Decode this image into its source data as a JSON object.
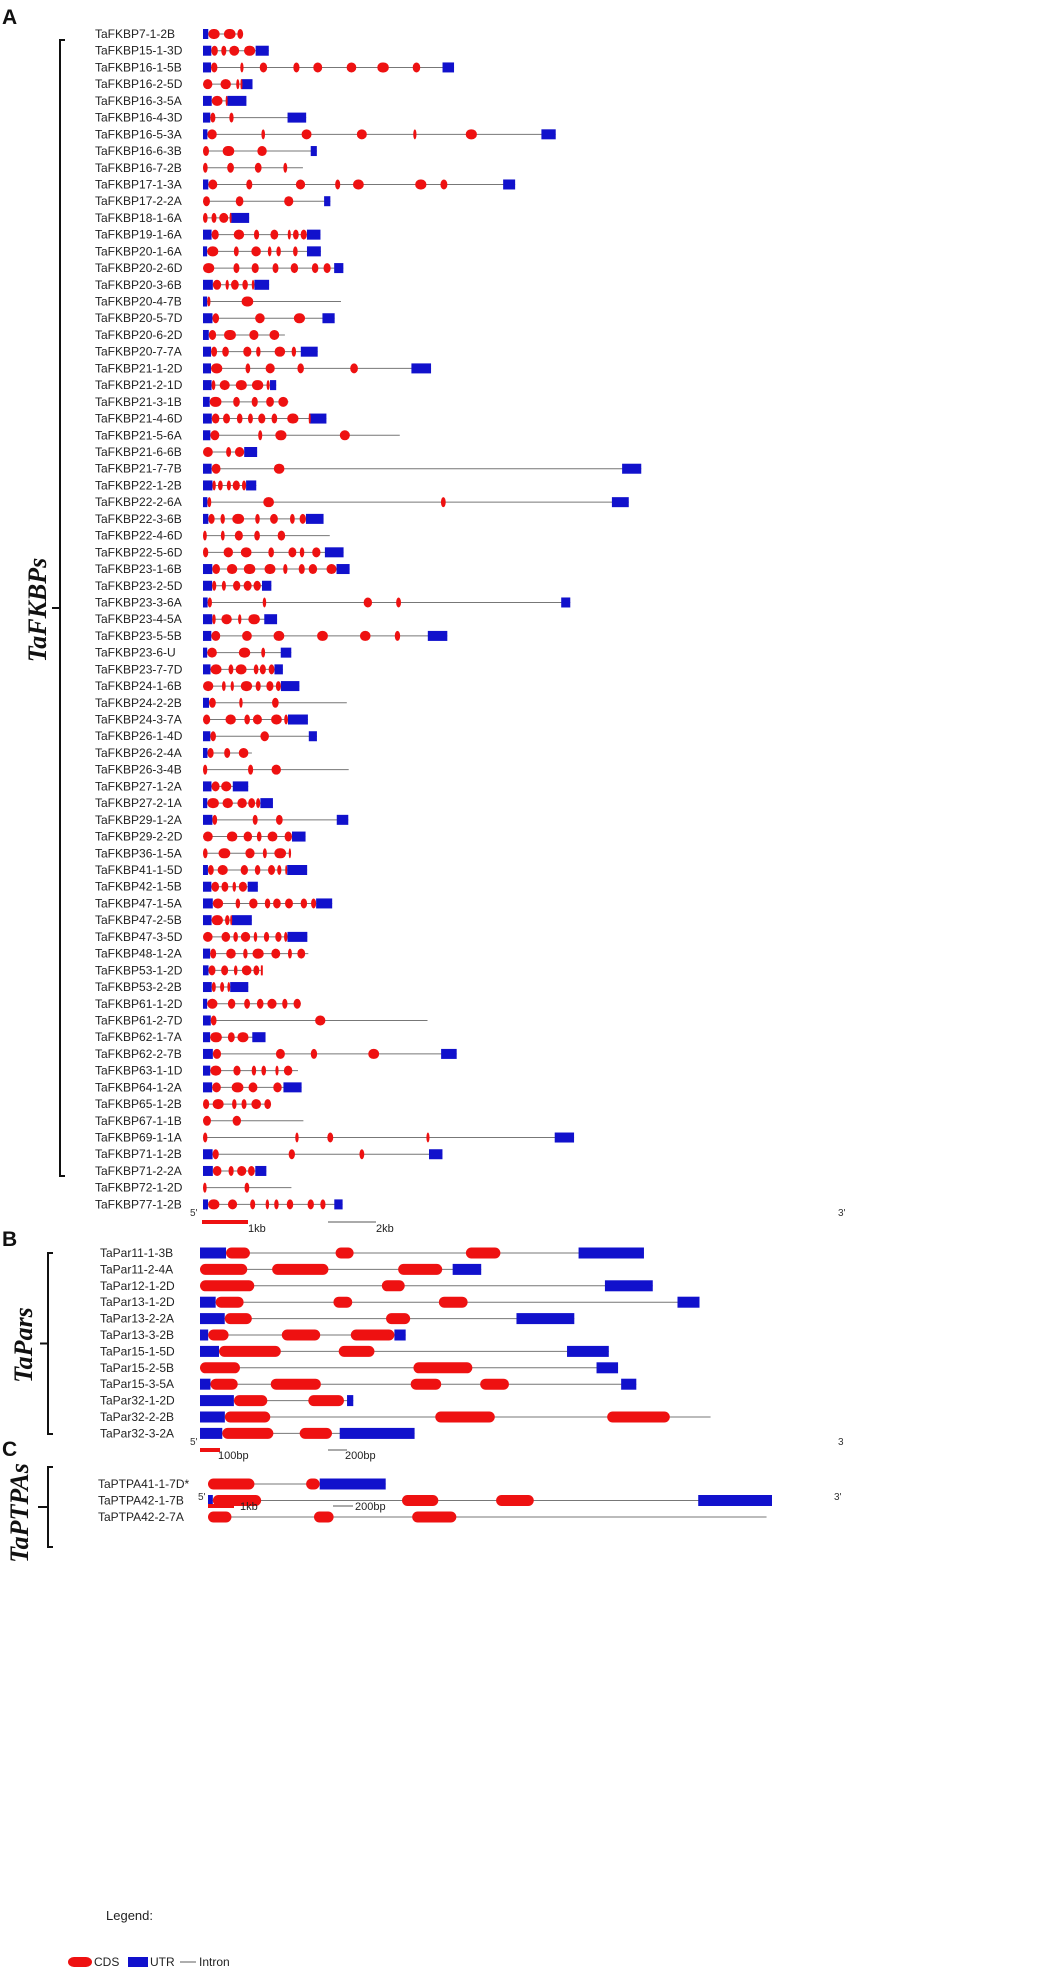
{
  "figure": {
    "colors": {
      "cds": "#ee1111",
      "utr": "#1111cc",
      "intron": "#777777",
      "text": "#222222"
    }
  },
  "legend": {
    "title": "Legend:",
    "cds": "CDS",
    "utr": "UTR",
    "intron": "Intron"
  },
  "panels": [
    {
      "letter": "A",
      "group": "TaFKBPs",
      "five_prime": "5'",
      "three_prime": "3'",
      "scales": [
        {
          "label": "1kb",
          "style": "cds"
        },
        {
          "label": "2kb",
          "style": "intron"
        }
      ],
      "genes": [
        "TaFKBP7-1-2B",
        "TaFKBP15-1-3D",
        "TaFKBP16-1-5B",
        "TaFKBP16-2-5D",
        "TaFKBP16-3-5A",
        "TaFKBP16-4-3D",
        "TaFKBP16-5-3A",
        "TaFKBP16-6-3B",
        "TaFKBP16-7-2B",
        "TaFKBP17-1-3A",
        "TaFKBP17-2-2A",
        "TaFKBP18-1-6A",
        "TaFKBP19-1-6A",
        "TaFKBP20-1-6A",
        "TaFKBP20-2-6D",
        "TaFKBP20-3-6B",
        "TaFKBP20-4-7B",
        "TaFKBP20-5-7D",
        "TaFKBP20-6-2D",
        "TaFKBP20-7-7A",
        "TaFKBP21-1-2D",
        "TaFKBP21-2-1D",
        "TaFKBP21-3-1B",
        "TaFKBP21-4-6D",
        "TaFKBP21-5-6A",
        "TaFKBP21-6-6B",
        "TaFKBP21-7-7B",
        "TaFKBP22-1-2B",
        "TaFKBP22-2-6A",
        "TaFKBP22-3-6B",
        "TaFKBP22-4-6D",
        "TaFKBP22-5-6D",
        "TaFKBP23-1-6B",
        "TaFKBP23-2-5D",
        "TaFKBP23-3-6A",
        "TaFKBP23-4-5A",
        "TaFKBP23-5-5B",
        "TaFKBP23-6-U",
        "TaFKBP23-7-7D",
        "TaFKBP24-1-6B",
        "TaFKBP24-2-2B",
        "TaFKBP24-3-7A",
        "TaFKBP26-1-4D",
        "TaFKBP26-2-4A",
        "TaFKBP26-3-4B",
        "TaFKBP27-1-2A",
        "TaFKBP27-2-1A",
        "TaFKBP29-1-2A",
        "TaFKBP29-2-2D",
        "TaFKBP36-1-5A",
        "TaFKBP41-1-5D",
        "TaFKBP42-1-5B",
        "TaFKBP47-1-5A",
        "TaFKBP47-2-5B",
        "TaFKBP47-3-5D",
        "TaFKBP48-1-2A",
        "TaFKBP53-1-2D",
        "TaFKBP53-2-2B",
        "TaFKBP61-1-2D",
        "TaFKBP61-2-7D",
        "TaFKBP62-1-7A",
        "TaFKBP62-2-7B",
        "TaFKBP63-1-1D",
        "TaFKBP64-1-2A",
        "TaFKBP65-1-2B",
        "TaFKBP67-1-1B",
        "TaFKBP69-1-1A",
        "TaFKBP71-1-2B",
        "TaFKBP71-2-2A",
        "TaFKBP72-1-2D",
        "TaFKBP77-1-2B"
      ]
    },
    {
      "letter": "B",
      "group": "TaPars",
      "five_prime": "5'",
      "three_prime": "3",
      "scales": [
        {
          "label": "100bp",
          "style": "cds"
        },
        {
          "label": "200bp",
          "style": "intron"
        }
      ],
      "genes": [
        "TaPar11-1-3B",
        "TaPar11-2-4A",
        "TaPar12-1-2D",
        "TaPar13-1-2D",
        "TaPar13-2-2A",
        "TaPar13-3-2B",
        "TaPar15-1-5D",
        "TaPar15-2-5B",
        "TaPar15-3-5A",
        "TaPar32-1-2D",
        "TaPar32-2-2B",
        "TaPar32-3-2A"
      ]
    },
    {
      "letter": "C",
      "group": "TaPTPAs",
      "five_prime": "5'",
      "three_prime": "3'",
      "scales": [
        {
          "label": "1kb",
          "style": "cds"
        },
        {
          "label": "200bp",
          "style": "intron"
        }
      ],
      "genes": [
        "TaPTPA41-1-7D*",
        "TaPTPA42-1-7B",
        "TaPTPA42-2-7A"
      ]
    }
  ]
}
